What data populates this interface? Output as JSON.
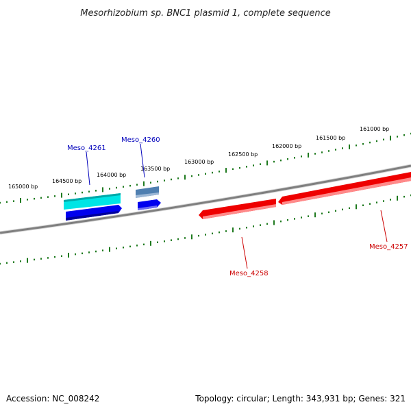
{
  "title": "Mesorhizobium sp. BNC1 plasmid 1, complete sequence",
  "footer": {
    "accession": "Accession: NC_008242",
    "summary": "Topology: circular; Length: 343,931 bp; Genes: 321"
  },
  "colors": {
    "backbone": "#7f7f7f",
    "tick": "#1f7a1f",
    "forward_blue": "#0000ee",
    "forward_cyan": "#00e5e5",
    "steelblue": "#4f7fb0",
    "reverse_red": "#ee0000",
    "label_blue": "#0000bb",
    "label_red": "#cc0000"
  },
  "ruler_labels": [
    "165000 bp",
    "164500 bp",
    "164000 bp",
    "163500 bp",
    "163000 bp",
    "162500 bp",
    "162000 bp",
    "161500 bp",
    "161000 bp"
  ],
  "genes": [
    {
      "name": "Meso_4261",
      "strand": "+",
      "color": "label_blue"
    },
    {
      "name": "Meso_4260",
      "strand": "+",
      "color": "label_blue"
    },
    {
      "name": "Meso_4258",
      "strand": "-",
      "color": "label_red"
    },
    {
      "name": "Meso_4257",
      "strand": "-",
      "color": "label_red"
    }
  ]
}
